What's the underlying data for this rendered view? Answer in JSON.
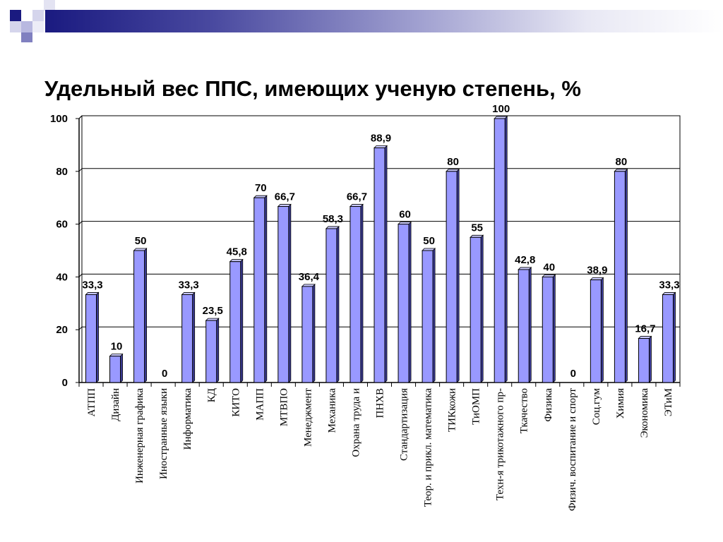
{
  "slide": {
    "title": "Удельный вес ППС, имеющих ученую степень, %"
  },
  "colors": {
    "bar_front": "#9999ff",
    "bar_side": "#3d3d99",
    "bar_top": "#ccccff",
    "deco_navy": "#1a1a80",
    "deco_light": "#c9c9e6",
    "deco_mid": "#8080c0"
  },
  "chart_data": {
    "type": "bar",
    "title": "Удельный вес ППС, имеющих ученую степень, %",
    "xlabel": "",
    "ylabel": "",
    "ylim": [
      0,
      100
    ],
    "yticks": [
      "0",
      "20",
      "40",
      "60",
      "80",
      "100"
    ],
    "grid": true,
    "categories": [
      "АТПП",
      "Дизайн",
      "Инженерная графика",
      "Иностранные языки",
      "Информатика",
      "КД",
      "КИТО",
      "МАПП",
      "МТВПО",
      "Менеджмент",
      "Механика",
      "Охрана труда и",
      "ПНХВ",
      "Стандартизация",
      "Теор. и прикл. математика",
      "ТИКкожи",
      "ТиОМП",
      "Техн-я трикотажного пр-",
      "Ткачество",
      "Физика",
      "Физич. воспитание и спорт",
      "Соц.гум",
      "Химия",
      "Экономика",
      "ЭТиМ"
    ],
    "values": [
      33.3,
      10,
      50,
      0,
      33.3,
      23.5,
      45.8,
      70,
      66.7,
      36.4,
      58.3,
      66.7,
      88.9,
      60,
      50,
      80,
      55,
      100,
      42.8,
      40,
      0,
      38.9,
      80,
      16.7,
      33.3
    ],
    "value_labels": [
      "33,3",
      "10",
      "50",
      "0",
      "33,3",
      "23,5",
      "45,8",
      "70",
      "66,7",
      "36,4",
      "58,3",
      "66,7",
      "88,9",
      "60",
      "50",
      "80",
      "55",
      "100",
      "42,8",
      "40",
      "0",
      "38,9",
      "80",
      "16,7",
      "33,3"
    ]
  }
}
